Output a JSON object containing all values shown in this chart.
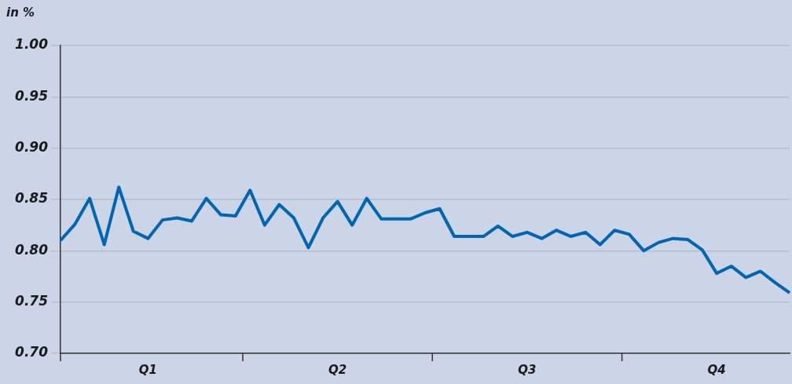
{
  "chart_data": {
    "type": "line",
    "ylabel": "in %",
    "categories": [
      null,
      null,
      null,
      null,
      null,
      null,
      "Q1",
      null,
      null,
      null,
      null,
      null,
      null,
      null,
      null,
      null,
      null,
      null,
      null,
      "Q2",
      null,
      null,
      null,
      null,
      null,
      null,
      null,
      null,
      null,
      null,
      null,
      null,
      "Q3",
      null,
      null,
      null,
      null,
      null,
      null,
      null,
      null,
      null,
      null,
      null,
      null,
      "Q4",
      null,
      null,
      null,
      null,
      null
    ],
    "series": [
      {
        "color": "#0066b3",
        "values": [
          0.81,
          0.826,
          0.851,
          0.806,
          0.862,
          0.819,
          0.812,
          0.83,
          0.832,
          0.829,
          0.851,
          0.835,
          0.834,
          0.859,
          0.825,
          0.845,
          0.832,
          0.803,
          0.832,
          0.848,
          0.825,
          0.851,
          0.831,
          0.831,
          0.831,
          0.837,
          0.841,
          0.814,
          0.814,
          0.814,
          0.824,
          0.814,
          0.818,
          0.812,
          0.82,
          0.814,
          0.818,
          0.806,
          0.82,
          0.816,
          0.8,
          0.808,
          0.812,
          0.811,
          0.801,
          0.778,
          0.785,
          0.774,
          0.78,
          0.769,
          0.759
        ]
      }
    ],
    "ylim": [
      0.7,
      1.0
    ],
    "yticks": [
      {
        "value": 0.7,
        "label": "0.70"
      },
      {
        "value": 0.75,
        "label": "0.75"
      },
      {
        "value": 0.8,
        "label": "0.80"
      },
      {
        "value": 0.85,
        "label": "0.85"
      },
      {
        "value": 0.9,
        "label": "0.90"
      },
      {
        "value": 0.95,
        "label": "0.95"
      },
      {
        "value": 1.0,
        "label": "1.00"
      }
    ],
    "grid": "y",
    "legend": false,
    "marker": "none",
    "line_style": "solid"
  }
}
